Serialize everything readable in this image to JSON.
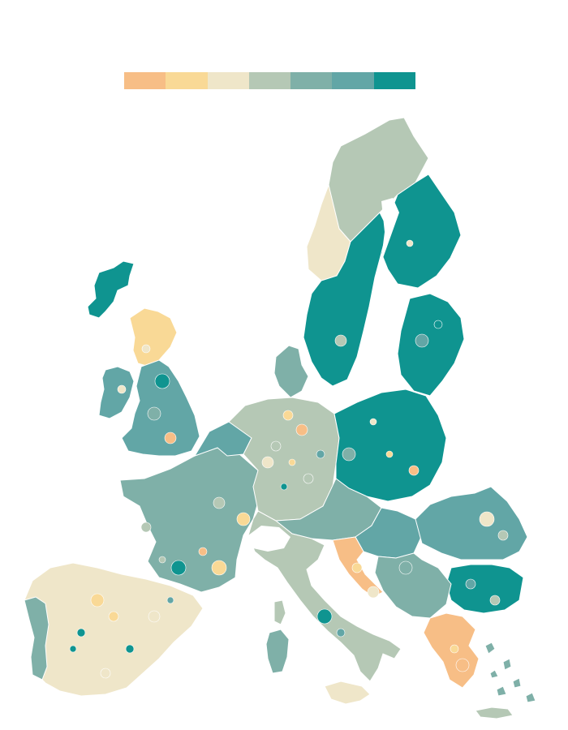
{
  "legend": {
    "colors": [
      "#f7be86",
      "#f9d996",
      "#efe6c9",
      "#b5c8b5",
      "#7fb0a8",
      "#62a6a6",
      "#0f9490"
    ]
  },
  "map": {
    "regions": [
      {
        "name": "iceland",
        "color": "#0f9490"
      },
      {
        "name": "ireland",
        "color": "#62a6a6"
      },
      {
        "name": "scotland",
        "color": "#f9d996"
      },
      {
        "name": "england-wales",
        "color": "#62a6a6"
      },
      {
        "name": "norway-north",
        "color": "#b5c8b5"
      },
      {
        "name": "norway-south",
        "color": "#efe6c9"
      },
      {
        "name": "sweden",
        "color": "#0f9490"
      },
      {
        "name": "finland",
        "color": "#0f9490"
      },
      {
        "name": "baltics",
        "color": "#0f9490"
      },
      {
        "name": "denmark",
        "color": "#7fb0a8"
      },
      {
        "name": "france",
        "color": "#7fb0a8"
      },
      {
        "name": "benelux",
        "color": "#62a6a6"
      },
      {
        "name": "germany",
        "color": "#b5c8b5"
      },
      {
        "name": "poland",
        "color": "#0f9490"
      },
      {
        "name": "czechia-austria",
        "color": "#7fb0a8"
      },
      {
        "name": "hungary",
        "color": "#62a6a6"
      },
      {
        "name": "romania",
        "color": "#62a6a6"
      },
      {
        "name": "bulgaria",
        "color": "#0f9490"
      },
      {
        "name": "balkans",
        "color": "#7fb0a8"
      },
      {
        "name": "croatia-coast",
        "color": "#f7be86"
      },
      {
        "name": "iberia",
        "color": "#efe6c9"
      },
      {
        "name": "portugal",
        "color": "#7fb0a8"
      },
      {
        "name": "italy",
        "color": "#b5c8b5"
      },
      {
        "name": "sardinia",
        "color": "#7fb0a8"
      },
      {
        "name": "corsica",
        "color": "#b5c8b5"
      },
      {
        "name": "sicily",
        "color": "#efe6c9"
      },
      {
        "name": "greece",
        "color": "#f7be86"
      },
      {
        "name": "greek-islands",
        "color": "#7fb0a8"
      },
      {
        "name": "crete",
        "color": "#b5c8b5"
      }
    ]
  }
}
